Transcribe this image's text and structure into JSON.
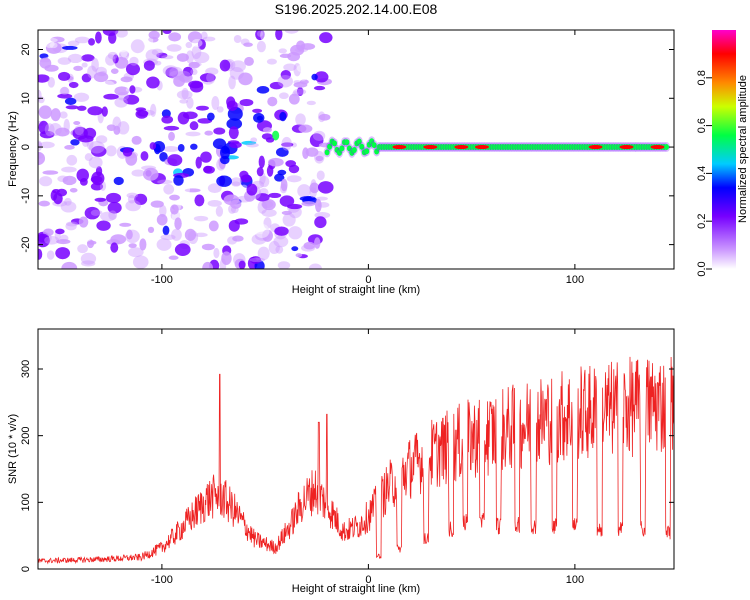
{
  "chart_data": [
    {
      "type": "heatmap",
      "title": "S196.2025.202.14.00.E08",
      "xlabel": "Height of straight line (km)",
      "ylabel": "Frequency (Hz)",
      "xlim": [
        -160,
        148
      ],
      "ylim": [
        -25,
        24
      ],
      "x_ticks": [
        -100,
        0,
        100
      ],
      "y_ticks": [
        20,
        10,
        0,
        -10,
        -20
      ],
      "colorbar": {
        "label": "Normalized spectral amplitude",
        "range": [
          0,
          1
        ],
        "ticks": [
          "0.0",
          "0.2",
          "0.4",
          "0.6",
          "0.8"
        ],
        "colors": [
          "#ffffff",
          "#cc99ff",
          "#7700ff",
          "#0000ff",
          "#00ccff",
          "#00ff44",
          "#ccff00",
          "#ff8800",
          "#ff0000",
          "#ff00cc"
        ]
      },
      "features": {
        "noise_region_x": [
          -160,
          -20
        ],
        "tracked_line_x": [
          -20,
          145
        ],
        "tracked_line_freq_hz": 0,
        "bright_segments_x": [
          15,
          30,
          45,
          55,
          110,
          125,
          140
        ]
      }
    },
    {
      "type": "line",
      "xlabel": "Height of straight line (km)",
      "ylabel": "SNR (10 * v/v)",
      "xlim": [
        -160,
        148
      ],
      "ylim": [
        0,
        360
      ],
      "x_ticks": [
        -100,
        0,
        100
      ],
      "y_ticks": [
        0,
        100,
        200,
        300
      ],
      "line_color": "#ee2222",
      "envelope": {
        "x": [
          -160,
          -130,
          -110,
          -100,
          -92,
          -85,
          -78,
          -72,
          -65,
          -55,
          -45,
          -38,
          -32,
          -26,
          -20,
          -12,
          -5,
          0,
          10,
          20,
          30,
          40,
          50,
          60,
          70,
          80,
          90,
          100,
          110,
          120,
          130,
          140,
          148
        ],
        "y": [
          15,
          18,
          22,
          40,
          70,
          100,
          130,
          140,
          110,
          55,
          40,
          80,
          125,
          150,
          120,
          70,
          80,
          100,
          155,
          190,
          215,
          230,
          245,
          255,
          265,
          275,
          285,
          290,
          295,
          300,
          305,
          310,
          310
        ]
      },
      "spikes": [
        {
          "x": -72,
          "y": 292
        },
        {
          "x": -20,
          "y": 232
        },
        {
          "x": -24,
          "y": 220
        }
      ],
      "dropouts": {
        "x": [
          5,
          15,
          28,
          40,
          47,
          55,
          63,
          72,
          80,
          90,
          100,
          112,
          122,
          133,
          145
        ],
        "y": [
          20,
          30,
          45,
          60,
          70,
          70,
          65,
          65,
          65,
          65,
          65,
          60,
          60,
          60,
          55
        ]
      }
    }
  ]
}
